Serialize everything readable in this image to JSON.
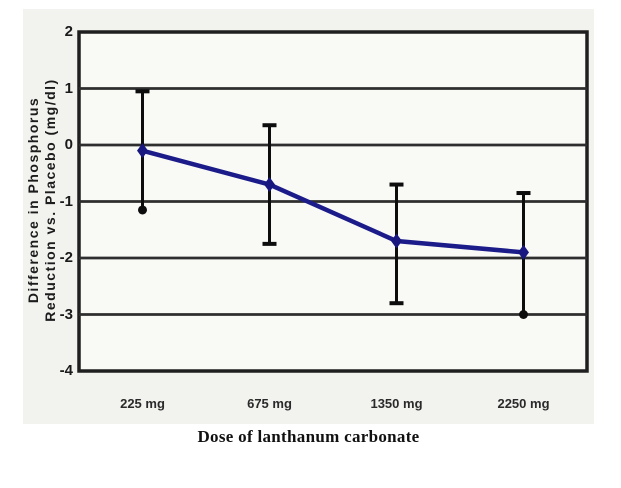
{
  "figure": {
    "caption": "Dose of lanthanum carbonate"
  },
  "chart_data": {
    "type": "line",
    "title": "",
    "xlabel": "Dose of lanthanum carbonate",
    "ylabel": [
      "Difference in Phosphorus",
      "Reduction vs. Placebo (mg/dl)"
    ],
    "categories": [
      "225 mg",
      "675 mg",
      "1350 mg",
      "2250 mg"
    ],
    "series": [
      {
        "name": "difference-in-phosphorus-reduction-vs-placebo",
        "values": [
          -0.1,
          -0.7,
          -1.7,
          -1.9
        ],
        "error_high": [
          0.95,
          0.35,
          -0.7,
          -0.85
        ],
        "error_low": [
          -1.15,
          -1.75,
          -2.8,
          -3.0
        ],
        "error_cap_high": [
          "bar",
          "bar",
          "bar",
          "bar"
        ],
        "error_cap_low": [
          "dot",
          "bar",
          "bar",
          "dot"
        ]
      }
    ],
    "ylim": [
      -4,
      2
    ],
    "yticks": [
      "2",
      "1",
      "0",
      "-1",
      "-2",
      "-3",
      "-4"
    ],
    "grid": true,
    "legend": false,
    "marker": "diamond",
    "colors": {
      "line": "#1b1b8a",
      "marker": "#17177f",
      "error_bar": "#0d0d0d",
      "grid_line": "#2e2e2e",
      "plot_border": "#1f1f1f",
      "plot_bg": "#f9f9f6",
      "figure_bg": "#f2f2ef",
      "text": "#1a1a1a"
    }
  }
}
